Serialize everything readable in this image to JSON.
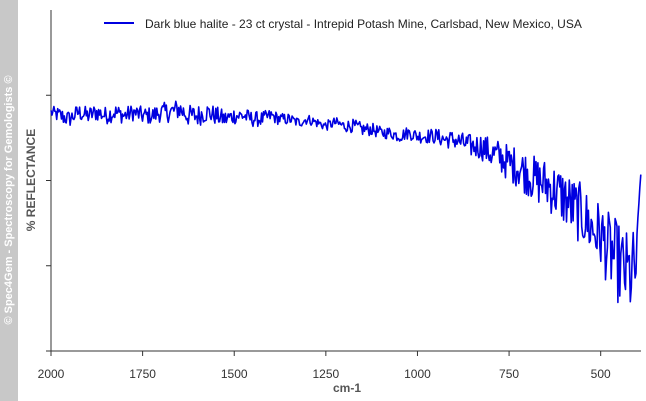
{
  "watermark": "© Spec4Gem - Spectroscopy for Gemologists ©",
  "chart_data": {
    "type": "line",
    "title": "",
    "xlabel": "cm-1",
    "ylabel": "% REFLECTANCE",
    "xlim": [
      2000,
      390
    ],
    "x_reversed": true,
    "ylim": [
      0,
      100
    ],
    "y_ticks_labeled": false,
    "grid": false,
    "legend": "top",
    "x_ticks": [
      {
        "value": 2000,
        "label": "2000"
      },
      {
        "value": 1750,
        "label": "1750"
      },
      {
        "value": 1500,
        "label": "1500"
      },
      {
        "value": 1250,
        "label": "1250"
      },
      {
        "value": 1000,
        "label": "1000"
      },
      {
        "value": 750,
        "label": "750"
      },
      {
        "value": 500,
        "label": "500"
      }
    ],
    "y_ticks": [
      0,
      25,
      50,
      75
    ],
    "series": [
      {
        "name": "Dark blue halite - 23 ct crystal - Intrepid Potash Mine, Carlsbad, New Mexico, USA",
        "color": "#0000e0",
        "x": [
          2000,
          1975,
          1950,
          1925,
          1900,
          1875,
          1850,
          1825,
          1800,
          1775,
          1750,
          1725,
          1700,
          1675,
          1650,
          1625,
          1600,
          1575,
          1550,
          1525,
          1500,
          1475,
          1450,
          1425,
          1400,
          1375,
          1350,
          1325,
          1300,
          1275,
          1250,
          1225,
          1200,
          1175,
          1150,
          1125,
          1100,
          1075,
          1050,
          1025,
          1000,
          975,
          950,
          925,
          900,
          875,
          850,
          825,
          800,
          775,
          750,
          725,
          700,
          675,
          650,
          625,
          600,
          575,
          550,
          525,
          500,
          480,
          460,
          440,
          420,
          400,
          390
        ],
        "y": [
          70,
          69,
          68,
          70,
          69,
          70,
          69,
          70,
          69,
          70,
          69,
          69,
          70,
          70,
          71,
          69,
          69,
          70,
          69,
          68,
          69,
          69,
          68,
          68,
          69,
          68,
          68,
          67,
          68,
          67,
          66,
          67,
          66,
          66,
          65,
          65,
          64,
          64,
          63,
          64,
          63,
          63,
          63,
          62,
          62,
          61,
          60,
          60,
          58,
          57,
          55,
          54,
          52,
          50,
          49,
          47,
          45,
          42,
          40,
          36,
          34,
          30,
          27,
          24,
          22,
          25,
          58
        ],
        "noise": [
          1.8,
          2.5,
          2.5,
          2.5,
          2.6,
          2.6,
          2.6,
          2.6,
          2.5,
          2.5,
          2.6,
          2.6,
          2.8,
          3.0,
          3.2,
          3.2,
          3.2,
          3.0,
          2.8,
          2.6,
          2.5,
          2.4,
          2.3,
          2.2,
          2.0,
          1.8,
          1.7,
          1.6,
          1.5,
          1.5,
          1.5,
          1.6,
          1.8,
          2.0,
          2.0,
          1.9,
          1.8,
          1.8,
          1.8,
          1.9,
          2.0,
          2.1,
          2.3,
          2.5,
          2.8,
          3.0,
          3.5,
          4.0,
          4.5,
          5.0,
          5.5,
          6.0,
          6.5,
          7.0,
          7.5,
          8.0,
          8.5,
          9.0,
          9.0,
          9.5,
          10.0,
          11.0,
          12.0,
          12.0,
          13.0,
          12.0,
          6.0
        ]
      }
    ]
  }
}
